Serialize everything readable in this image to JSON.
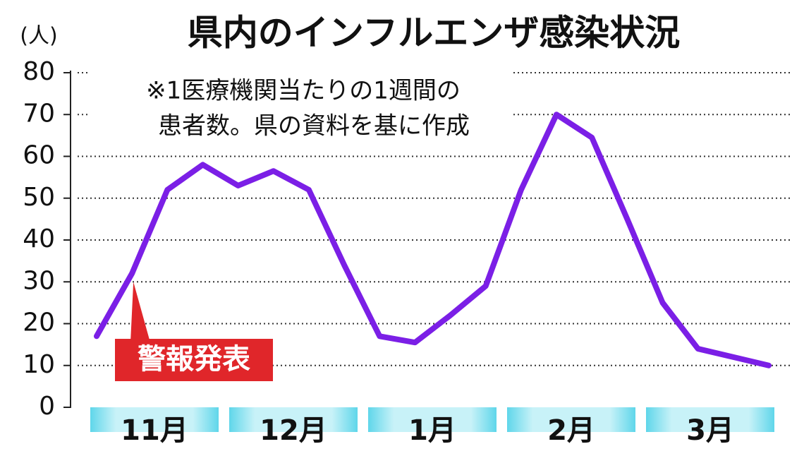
{
  "chart_data": {
    "type": "line",
    "title": "県内のインフルエンザ感染状況",
    "y_unit": "(人)",
    "note": [
      "※1医療機関当たりの1週間の",
      "患者数。県の資料を基に作成"
    ],
    "annotation": {
      "text": "警報発表",
      "point": 1
    },
    "categories": [
      null,
      null,
      null,
      null,
      null,
      null,
      null,
      null,
      null,
      null,
      null,
      null,
      null,
      null,
      null,
      null,
      null,
      null,
      null,
      null
    ],
    "period_labels": [
      "11月",
      "12月",
      "1月",
      "2月",
      "3月"
    ],
    "series": [
      {
        "name": "患者数",
        "color": "#7b1fe6",
        "values": [
          17,
          32,
          52,
          58,
          53,
          56.5,
          52,
          34,
          17,
          15.5,
          22,
          29,
          52,
          70,
          64.5,
          45,
          25,
          14,
          12,
          10
        ]
      }
    ],
    "ylim": [
      0,
      80
    ],
    "yticks": [
      0,
      10,
      20,
      30,
      40,
      50,
      60,
      70,
      80
    ],
    "grid": true
  }
}
